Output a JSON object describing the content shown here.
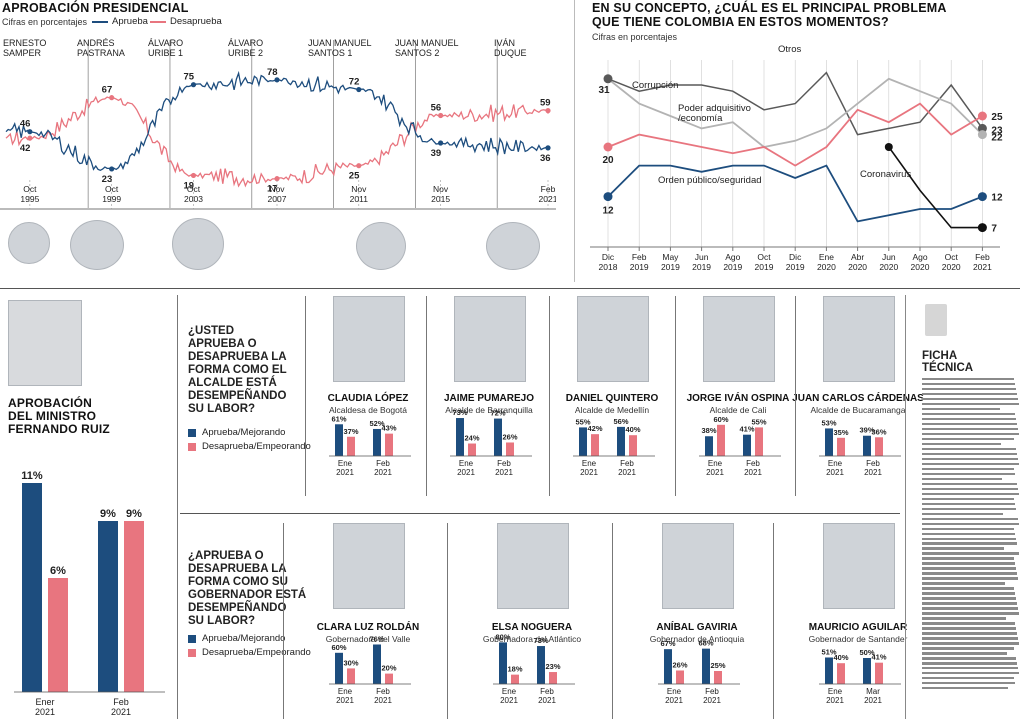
{
  "approval": {
    "title": "APROBACIÓN PRESIDENCIAL",
    "subtitle": "Cifras en porcentajes",
    "legend_approve": "Aprueba",
    "legend_disapprove": "Desaprueba",
    "eras": [
      {
        "name": "ERNESTO SAMPER",
        "lines": [
          "ERNESTO",
          "SAMPER"
        ]
      },
      {
        "name": "ANDRÉS PASTRANA",
        "lines": [
          "ANDRÉS",
          "PASTRANA"
        ]
      },
      {
        "name": "ÁLVARO URIBE 1",
        "lines": [
          "ÁLVARO",
          "URIBE 1"
        ]
      },
      {
        "name": "ÁLVARO URIBE 2",
        "lines": [
          "ÁLVARO",
          "URIBE 2"
        ]
      },
      {
        "name": "JUAN MANUEL SANTOS 1",
        "lines": [
          "JUAN MANUEL",
          "SANTOS 1"
        ]
      },
      {
        "name": "JUAN MANUEL SANTOS 2",
        "lines": [
          "JUAN MANUEL",
          "SANTOS 2"
        ]
      },
      {
        "name": "IVÁN DUQUE",
        "lines": [
          "IVÁN",
          "DUQUE"
        ]
      }
    ],
    "dates": [
      {
        "lines": [
          "Oct",
          "1995"
        ]
      },
      {
        "lines": [
          "Oct",
          "1999"
        ]
      },
      {
        "lines": [
          "Oct",
          "2003"
        ]
      },
      {
        "lines": [
          "Nov",
          "2007"
        ]
      },
      {
        "lines": [
          "Nov",
          "2011"
        ]
      },
      {
        "lines": [
          "Nov",
          "2015"
        ]
      },
      {
        "lines": [
          "Feb",
          "2021"
        ]
      }
    ],
    "labels": [
      "46",
      "42",
      "67",
      "23",
      "75",
      "19",
      "78",
      "17",
      "72",
      "25",
      "56",
      "39",
      "59",
      "36"
    ]
  },
  "problem": {
    "title_line1": "EN SU CONCEPTO, ¿CUÁL ES EL PRINCIPAL PROBLEMA",
    "title_line2": "QUE TIENE COLOMBIA EN ESTOS MOMENTOS?",
    "subtitle": "Cifras en porcentajes",
    "series_labels": {
      "otros": "Otros",
      "corrupcion": "Corrupción",
      "poder_line1": "Poder adquisitivo",
      "poder_line2": "/economía",
      "orden": "Orden público/seguridad",
      "corona": "Coronavirus"
    },
    "months": [
      {
        "lines": [
          "Dic",
          "2018"
        ]
      },
      {
        "lines": [
          "Feb",
          "2019"
        ]
      },
      {
        "lines": [
          "May",
          "2019"
        ]
      },
      {
        "lines": [
          "Jun",
          "2019"
        ]
      },
      {
        "lines": [
          "Ago",
          "2019"
        ]
      },
      {
        "lines": [
          "Oct",
          "2019"
        ]
      },
      {
        "lines": [
          "Dic",
          "2019"
        ]
      },
      {
        "lines": [
          "Ene",
          "2020"
        ]
      },
      {
        "lines": [
          "Abr",
          "2020"
        ]
      },
      {
        "lines": [
          "Jun",
          "2020"
        ]
      },
      {
        "lines": [
          "Ago",
          "2020"
        ]
      },
      {
        "lines": [
          "Oct",
          "2020"
        ]
      },
      {
        "lines": [
          "Feb",
          "2021"
        ]
      }
    ],
    "start_labels": [
      "31",
      "20",
      "12"
    ],
    "end_labels": [
      "25",
      "23",
      "22",
      "12",
      "7"
    ]
  },
  "minister": {
    "title_line1": "APROBACIÓN",
    "title_line2": "DEL MINISTRO",
    "title_line3": "FERNANDO RUIZ",
    "legend_approve": "Aprueba/Mejorando",
    "legend_disapprove": "Desaprueba/Empeorando",
    "bars": [
      {
        "period_lines": [
          "Ener",
          "2021"
        ],
        "approve": "11%",
        "disapprove": "6%"
      },
      {
        "period_lines": [
          "Feb",
          "2021"
        ],
        "approve": "9%",
        "disapprove": "9%"
      }
    ]
  },
  "mayors": {
    "question_lines": [
      "¿USTED",
      "APRUEBA O",
      "DESAPRUEBA LA",
      "FORMA COMO EL",
      "ALCALDE ESTÁ",
      "DESEMPEÑANDO",
      "SU LABOR?"
    ],
    "legend_approve": "Aprueba/Mejorando",
    "legend_disapprove": "Desaprueba/Empeorando",
    "people": [
      {
        "name": "CLAUDIA LÓPEZ",
        "role": "Alcaldesa de Bogotá",
        "periods": [
          {
            "lines": [
              "Ene",
              "2021"
            ],
            "a": "61%",
            "d": "37%"
          },
          {
            "lines": [
              "Feb",
              "2021"
            ],
            "a": "52%",
            "d": "43%"
          }
        ]
      },
      {
        "name": "JAIME PUMAREJO",
        "role": "Alcalde de Barranquilla",
        "periods": [
          {
            "lines": [
              "Ene",
              "2021"
            ],
            "a": "73%",
            "d": "24%"
          },
          {
            "lines": [
              "Feb",
              "2021"
            ],
            "a": "72%",
            "d": "26%"
          }
        ]
      },
      {
        "name": "DANIEL QUINTERO",
        "role": "Alcalde de Medellín",
        "periods": [
          {
            "lines": [
              "Ene",
              "2021"
            ],
            "a": "55%",
            "d": "42%"
          },
          {
            "lines": [
              "Feb",
              "2021"
            ],
            "a": "56%",
            "d": "40%"
          }
        ]
      },
      {
        "name": "JORGE IVÁN OSPINA",
        "role": "Alcalde de Cali",
        "periods": [
          {
            "lines": [
              "Ene",
              "2021"
            ],
            "a": "38%",
            "d": "60%"
          },
          {
            "lines": [
              "Feb",
              "2021"
            ],
            "a": "41%",
            "d": "55%"
          }
        ]
      },
      {
        "name": "JUAN CARLOS CÁRDENAS",
        "role": "Alcalde de Bucaramanga",
        "periods": [
          {
            "lines": [
              "Ene",
              "2021"
            ],
            "a": "53%",
            "d": "35%"
          },
          {
            "lines": [
              "Feb",
              "2021"
            ],
            "a": "39%",
            "d": "36%"
          }
        ]
      }
    ]
  },
  "governors": {
    "question_lines": [
      "¿APRUEBA O",
      "DESAPRUEBA LA",
      "FORMA COMO SU",
      "GOBERNADOR ESTÁ",
      "DESEMPEÑANDO",
      "SU LABOR?"
    ],
    "legend_approve": "Aprueba/Mejorando",
    "legend_disapprove": "Desaprueba/Empeorando",
    "people": [
      {
        "name": "CLARA LUZ ROLDÁN",
        "role": "Gobernadora del Valle",
        "periods": [
          {
            "lines": [
              "Ene",
              "2021"
            ],
            "a": "60%",
            "d": "30%"
          },
          {
            "lines": [
              "Feb",
              "2021"
            ],
            "a": "76%",
            "d": "20%"
          }
        ]
      },
      {
        "name": "ELSA NOGUERA",
        "role": "Gobernadora del Atlántico",
        "periods": [
          {
            "lines": [
              "Ene",
              "2021"
            ],
            "a": "80%",
            "d": "18%"
          },
          {
            "lines": [
              "Feb",
              "2021"
            ],
            "a": "73%",
            "d": "23%"
          }
        ]
      },
      {
        "name": "ANÍBAL GAVIRIA",
        "role": "Gobernador de Antioquia",
        "periods": [
          {
            "lines": [
              "Ene",
              "2021"
            ],
            "a": "67%",
            "d": "26%"
          },
          {
            "lines": [
              "Feb",
              "2021"
            ],
            "a": "68%",
            "d": "25%"
          }
        ]
      },
      {
        "name": "MAURICIO AGUILAR",
        "role": "Gobernador de Santander",
        "periods": [
          {
            "lines": [
              "Ene",
              "2021"
            ],
            "a": "51%",
            "d": "40%"
          },
          {
            "lines": [
              "Mar",
              "2021"
            ],
            "a": "50%",
            "d": "41%"
          }
        ]
      }
    ]
  },
  "ficha": {
    "title_line1": "FICHA",
    "title_line2": "TÉCNICA"
  },
  "colors": {
    "approve": "#1d4d7e",
    "disapprove": "#e8757f",
    "otros": "#595959",
    "corrupcion": "#b3b3b3",
    "coronavirus": "#111111"
  },
  "chart_data": [
    {
      "type": "line",
      "title": "APROBACIÓN PRESIDENCIAL",
      "subtitle": "Cifras en porcentajes",
      "x_ticks": [
        "Oct 1995",
        "Oct 1999",
        "Oct 2003",
        "Nov 2007",
        "Nov 2011",
        "Nov 2015",
        "Feb 2021"
      ],
      "x_range": [
        "1994-08",
        "2021-02"
      ],
      "series": [
        {
          "name": "Aprueba",
          "points": [
            [
              "1995-10",
              46
            ],
            [
              "1999-10",
              23
            ],
            [
              "2003-10",
              75
            ],
            [
              "2007-11",
              78
            ],
            [
              "2011-11",
              72
            ],
            [
              "2015-11",
              39
            ],
            [
              "2021-02",
              36
            ]
          ]
        },
        {
          "name": "Desaprueba",
          "points": [
            [
              "1995-10",
              42
            ],
            [
              "1999-10",
              67
            ],
            [
              "2003-10",
              19
            ],
            [
              "2007-11",
              17
            ],
            [
              "2011-11",
              25
            ],
            [
              "2015-11",
              56
            ],
            [
              "2021-02",
              59
            ]
          ]
        }
      ]
    },
    {
      "type": "line",
      "title": "EN SU CONCEPTO, ¿CUÁL ES EL PRINCIPAL PROBLEMA QUE TIENE COLOMBIA EN ESTOS MOMENTOS?",
      "subtitle": "Cifras en porcentajes",
      "categories": [
        "Dic 2018",
        "Feb 2019",
        "May 2019",
        "Jun 2019",
        "Ago 2019",
        "Oct 2019",
        "Dic 2019",
        "Ene 2020",
        "Abr 2020",
        "Jun 2020",
        "Ago 2020",
        "Oct 2020",
        "Feb 2021"
      ],
      "grid": true,
      "series": [
        {
          "name": "Otros",
          "values": [
            31,
            29,
            30,
            30,
            29,
            26,
            27,
            32,
            22,
            23,
            24,
            30,
            23
          ]
        },
        {
          "name": "Corrupción",
          "values": [
            31,
            27,
            25,
            23,
            24,
            20,
            21,
            23,
            27,
            31,
            29,
            27,
            22
          ]
        },
        {
          "name": "Poder adquisitivo /economía",
          "values": [
            20,
            22,
            21,
            20,
            19,
            20,
            17,
            20,
            26,
            24,
            27,
            22,
            25
          ]
        },
        {
          "name": "Orden público/seguridad",
          "values": [
            12,
            17,
            17,
            16,
            17,
            17,
            15,
            17,
            8,
            9,
            10,
            10,
            12
          ]
        },
        {
          "name": "Coronavirus",
          "values": [
            null,
            null,
            null,
            null,
            null,
            null,
            null,
            null,
            null,
            20,
            13,
            7,
            7
          ]
        }
      ]
    },
    {
      "type": "bar",
      "title": "APROBACIÓN DEL MINISTRO FERNANDO RUIZ",
      "categories": [
        "Ener 2021",
        "Feb 2021"
      ],
      "series": [
        {
          "name": "Aprueba/Mejorando",
          "values": [
            11,
            9
          ]
        },
        {
          "name": "Desaprueba/Empeorando",
          "values": [
            6,
            9
          ]
        }
      ]
    },
    {
      "type": "bar",
      "title": "¿USTED APRUEBA O DESAPRUEBA LA FORMA COMO EL ALCALDE ESTÁ DESEMPEÑANDO SU LABOR?",
      "groups": [
        {
          "name": "CLAUDIA LÓPEZ",
          "categories": [
            "Ene 2021",
            "Feb 2021"
          ],
          "approve": [
            61,
            52
          ],
          "disapprove": [
            37,
            43
          ]
        },
        {
          "name": "JAIME PUMAREJO",
          "categories": [
            "Ene 2021",
            "Feb 2021"
          ],
          "approve": [
            73,
            72
          ],
          "disapprove": [
            24,
            26
          ]
        },
        {
          "name": "DANIEL QUINTERO",
          "categories": [
            "Ene 2021",
            "Feb 2021"
          ],
          "approve": [
            55,
            56
          ],
          "disapprove": [
            42,
            40
          ]
        },
        {
          "name": "JORGE IVÁN OSPINA",
          "categories": [
            "Ene 2021",
            "Feb 2021"
          ],
          "approve": [
            38,
            41
          ],
          "disapprove": [
            60,
            55
          ]
        },
        {
          "name": "JUAN CARLOS CÁRDENAS",
          "categories": [
            "Ene 2021",
            "Feb 2021"
          ],
          "approve": [
            53,
            39
          ],
          "disapprove": [
            35,
            36
          ]
        }
      ]
    },
    {
      "type": "bar",
      "title": "¿APRUEBA O DESAPRUEBA LA FORMA COMO SU GOBERNADOR ESTÁ DESEMPEÑANDO SU LABOR?",
      "groups": [
        {
          "name": "CLARA LUZ ROLDÁN",
          "categories": [
            "Ene 2021",
            "Feb 2021"
          ],
          "approve": [
            60,
            76
          ],
          "disapprove": [
            30,
            20
          ]
        },
        {
          "name": "ELSA NOGUERA",
          "categories": [
            "Ene 2021",
            "Feb 2021"
          ],
          "approve": [
            80,
            73
          ],
          "disapprove": [
            18,
            23
          ]
        },
        {
          "name": "ANÍBAL GAVIRIA",
          "categories": [
            "Ene 2021",
            "Feb 2021"
          ],
          "approve": [
            67,
            68
          ],
          "disapprove": [
            26,
            25
          ]
        },
        {
          "name": "MAURICIO AGUILAR",
          "categories": [
            "Ene 2021",
            "Mar 2021"
          ],
          "approve": [
            51,
            50
          ],
          "disapprove": [
            40,
            41
          ]
        }
      ]
    }
  ]
}
